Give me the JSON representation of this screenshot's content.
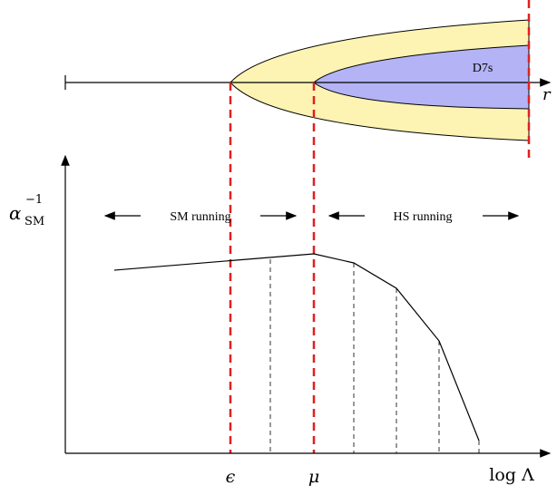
{
  "top_panel": {
    "inner_region_label": "D7s",
    "axis_label": "r",
    "colors": {
      "outer_fill": "#fdf3b3",
      "inner_fill": "#b3b3f5",
      "marker_line": "#e02020"
    }
  },
  "bottom_panel": {
    "y_axis_label_main": "α",
    "y_axis_label_sub": "SM",
    "y_axis_label_sup": "−1",
    "x_axis_label": "log Λ",
    "left_range_label": "SM running",
    "right_range_label": "HS running",
    "epsilon_label": "ϵ",
    "mu_label": "μ"
  }
}
